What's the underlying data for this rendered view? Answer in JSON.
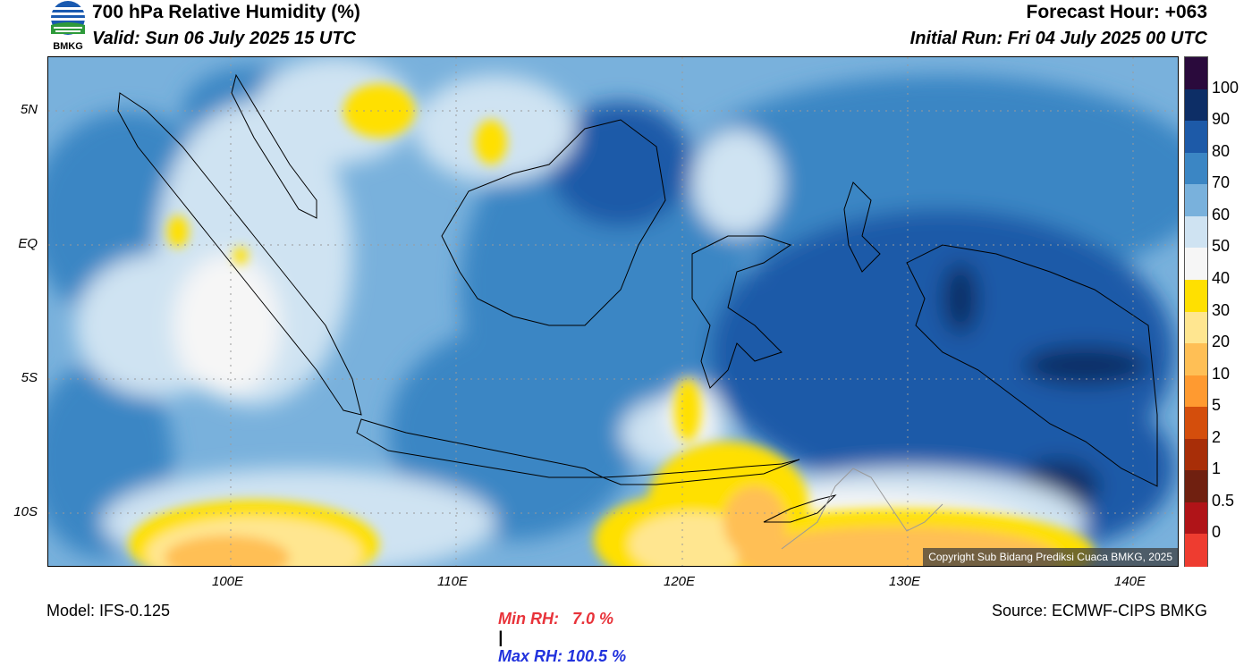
{
  "header": {
    "title": "700 hPa Relative Humidity (%)",
    "valid": "Valid: Sun 06 July 2025 15 UTC",
    "forecast_hour": "Forecast Hour: +063",
    "initial_run": "Initial Run: Fri 04 July 2025 00 UTC",
    "logo_text": "BMKG"
  },
  "axes": {
    "lat_labels": [
      "5N",
      "EQ",
      "5S",
      "10S"
    ],
    "lon_labels": [
      "100E",
      "110E",
      "120E",
      "130E",
      "140E"
    ]
  },
  "colorbar": {
    "labels": [
      "100",
      "90",
      "80",
      "70",
      "60",
      "50",
      "40",
      "30",
      "20",
      "10",
      "5",
      "2",
      "1",
      "0.5",
      "0"
    ],
    "colors": [
      "#2a0a3c",
      "#0d2e66",
      "#1d5aa8",
      "#3b86c4",
      "#79b1dc",
      "#cfe3f2",
      "#f6f6f6",
      "#ffe000",
      "#ffe690",
      "#ffbf55",
      "#ff9a30",
      "#d44e0c",
      "#a82e08",
      "#702010",
      "#b01418",
      "#ee3c30"
    ]
  },
  "stats": {
    "min": "Min RH:   7.0 %",
    "separator": "|",
    "max": "Max RH: 100.5 %",
    "min_color": "#e8333a",
    "max_color": "#2233dd"
  },
  "footer": {
    "model": "Model: IFS-0.125",
    "source": "Source: ECMWF-CIPS BMKG",
    "copyright": "Copyright Sub Bidang Prediksi Cuaca BMKG, 2025"
  }
}
